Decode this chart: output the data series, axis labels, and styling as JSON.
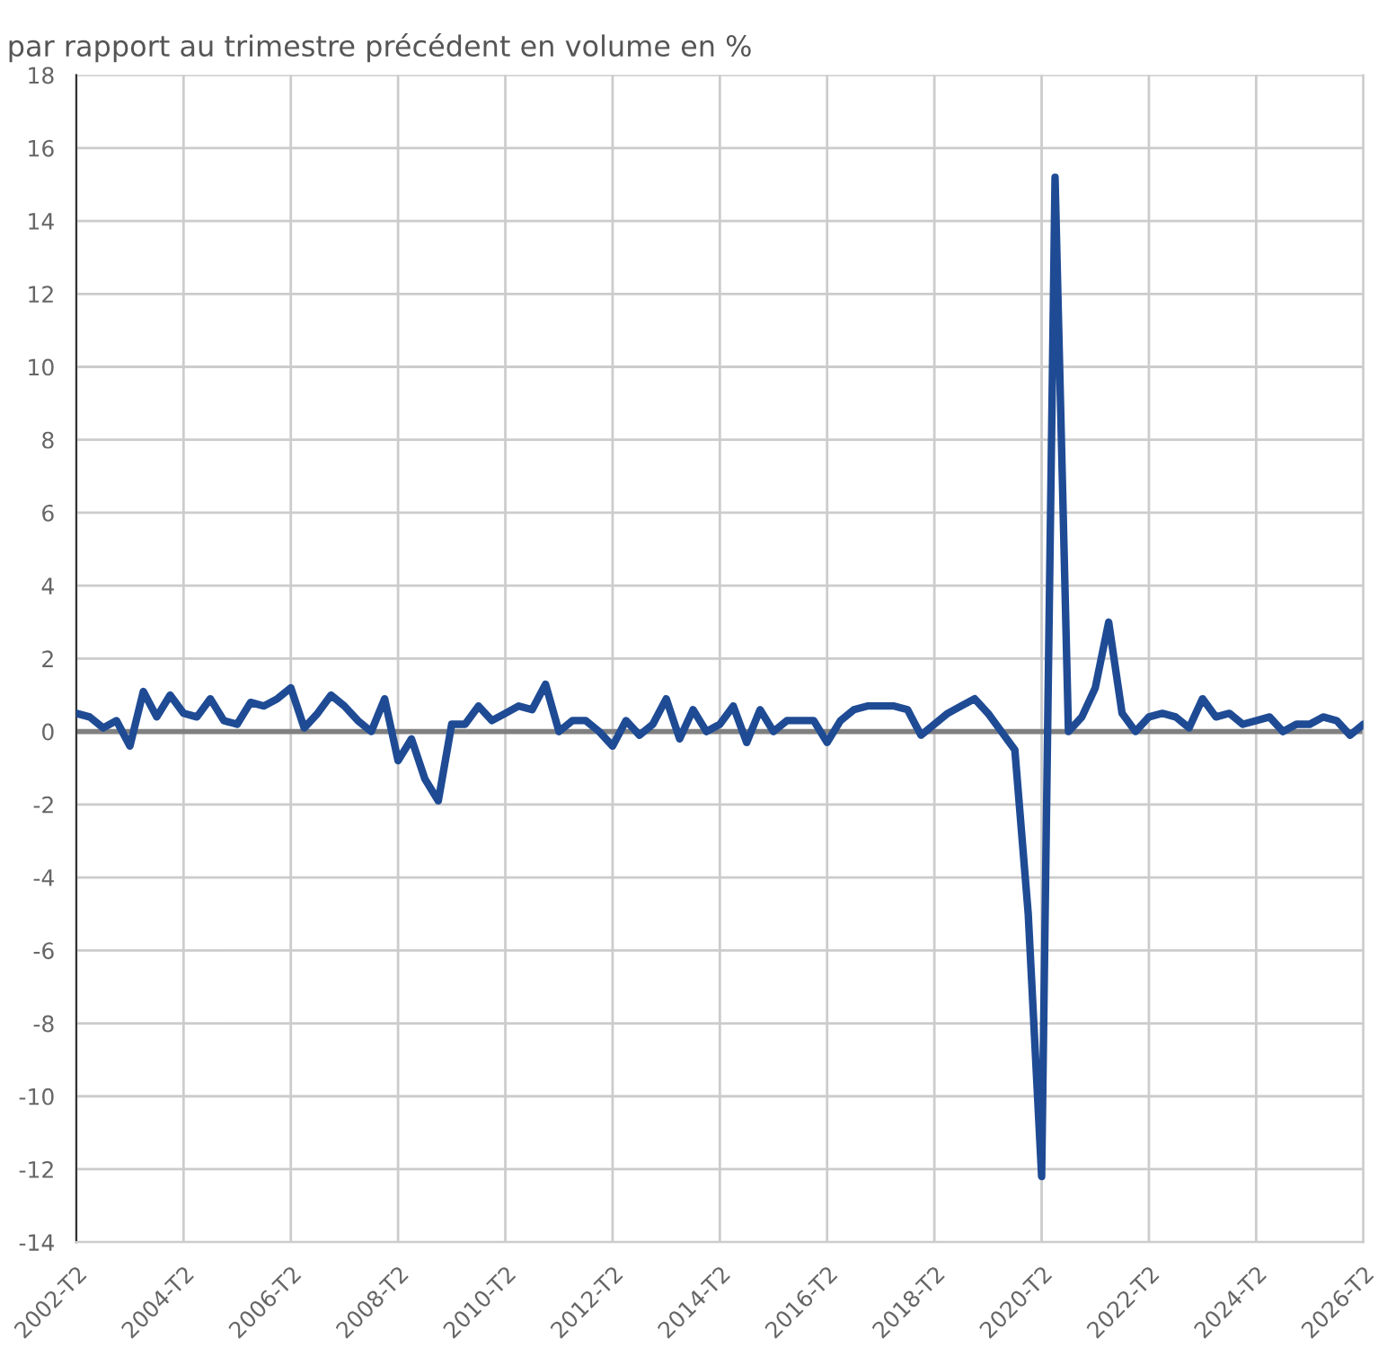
{
  "chart_data": {
    "type": "line",
    "title": "par rapport au trimestre précédent en volume en %",
    "categories": [
      "2002-T2",
      null,
      null,
      null,
      null,
      null,
      null,
      null,
      "2004-T2",
      null,
      null,
      null,
      null,
      null,
      null,
      null,
      "2006-T2",
      null,
      null,
      null,
      null,
      null,
      null,
      null,
      "2008-T2",
      null,
      null,
      null,
      null,
      null,
      null,
      null,
      "2010-T2",
      null,
      null,
      null,
      null,
      null,
      null,
      null,
      "2012-T2",
      null,
      null,
      null,
      null,
      null,
      null,
      null,
      "2014-T2",
      null,
      null,
      null,
      null,
      null,
      null,
      null,
      "2016-T2",
      null,
      null,
      null,
      null,
      null,
      null,
      null,
      "2018-T2",
      null,
      null,
      null,
      null,
      null,
      null,
      null,
      "2020-T2",
      null,
      null,
      null,
      null,
      null,
      null,
      null,
      "2022-T2",
      null,
      null,
      null,
      null,
      null,
      null,
      null,
      "2024-T2",
      null,
      null,
      null,
      null,
      null,
      null,
      null,
      "2026-T2"
    ],
    "series": [
      {
        "color": "#1f4b94",
        "values": [
          0.5,
          0.4,
          0.1,
          0.3,
          -0.4,
          1.1,
          0.4,
          1.0,
          0.5,
          0.4,
          0.9,
          0.3,
          0.2,
          0.8,
          0.7,
          0.9,
          1.2,
          0.1,
          0.5,
          1.0,
          0.7,
          0.3,
          0.0,
          0.9,
          -0.8,
          -0.2,
          -1.3,
          -1.9,
          0.2,
          0.2,
          0.7,
          0.3,
          0.5,
          0.7,
          0.6,
          1.3,
          0.0,
          0.3,
          0.3,
          0.0,
          -0.4,
          0.3,
          -0.1,
          0.2,
          0.9,
          -0.2,
          0.6,
          0.0,
          0.2,
          0.7,
          -0.3,
          0.6,
          0.0,
          0.3,
          0.3,
          0.3,
          -0.3,
          0.3,
          0.6,
          0.7,
          0.7,
          0.7,
          0.6,
          -0.1,
          0.2,
          0.5,
          0.7,
          0.9,
          0.5,
          0.0,
          -0.5,
          -5.0,
          -12.2,
          15.2,
          0.0,
          0.4,
          1.2,
          3.0,
          0.5,
          0.0,
          0.4,
          0.5,
          0.4,
          0.1,
          0.9,
          0.4,
          0.5,
          0.2,
          0.3,
          0.4,
          0.0,
          0.2,
          0.2,
          0.4,
          0.3,
          -0.1,
          0.2
        ]
      }
    ],
    "ylim": [
      -14,
      18
    ],
    "yticks": [
      -14,
      -12,
      -10,
      -8,
      -6,
      -4,
      -2,
      0,
      2,
      4,
      6,
      8,
      10,
      12,
      14,
      16,
      18
    ],
    "grid": true,
    "line_style": "solid",
    "marker": "none",
    "ref_lines": [
      {
        "axis": "y",
        "value": 0,
        "color": "#808080"
      }
    ]
  }
}
